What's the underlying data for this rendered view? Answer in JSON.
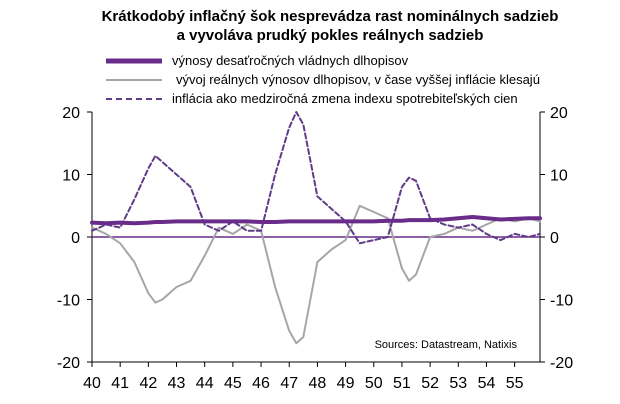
{
  "title_line1": "Krátkodobý inflačný šok nesprevádza rast nominálnych sadzieb",
  "title_line2": "a vyvoláva prudký pokles reálnych sadzieb",
  "source": "Sources: Datastream, Natixis",
  "colors": {
    "nominal": "#6a2c8a",
    "real": "#a6a6a6",
    "inflation": "#5f3b8a",
    "zero": "#6a2c8a"
  },
  "chart_data": {
    "type": "line",
    "x": [
      40,
      40.5,
      41,
      41.5,
      42,
      42.25,
      42.5,
      43,
      43.5,
      44,
      44.5,
      45,
      45.5,
      46,
      46.5,
      47,
      47.25,
      47.5,
      48,
      48.5,
      49,
      49.5,
      50,
      50.5,
      51,
      51.25,
      51.5,
      52,
      52.5,
      53,
      53.5,
      54,
      54.5,
      55,
      55.5,
      55.9
    ],
    "x_tick_labels": [
      "40",
      "41",
      "42",
      "43",
      "44",
      "45",
      "46",
      "47",
      "48",
      "49",
      "50",
      "51",
      "52",
      "53",
      "54",
      "55"
    ],
    "x_ticks": [
      40,
      41,
      42,
      43,
      44,
      45,
      46,
      47,
      48,
      49,
      50,
      51,
      52,
      53,
      54,
      55
    ],
    "ylim": [
      -20,
      20
    ],
    "y_ticks": [
      20,
      10,
      0,
      -10,
      -20
    ],
    "y_tick_labels": [
      "20",
      "10",
      "0",
      "-10",
      "-20"
    ],
    "y2_ticks": [
      20,
      10,
      0,
      -10,
      -20
    ],
    "y2_tick_labels": [
      "20",
      "10",
      "0",
      "-10",
      "-20"
    ],
    "series": [
      {
        "name": "výnosy desaťročných vládnych dlhopisov",
        "style": "solid-thick",
        "values": [
          2.3,
          2.2,
          2.3,
          2.2,
          2.3,
          2.4,
          2.4,
          2.5,
          2.5,
          2.5,
          2.5,
          2.5,
          2.5,
          2.4,
          2.4,
          2.5,
          2.5,
          2.5,
          2.5,
          2.5,
          2.5,
          2.5,
          2.5,
          2.6,
          2.6,
          2.7,
          2.7,
          2.7,
          2.8,
          3.0,
          3.2,
          3.0,
          2.8,
          2.9,
          3.0,
          3.0
        ]
      },
      {
        "name": "vývoj reálnych výnosov dlhopisov, v čase vyššej inflácie klesajú",
        "style": "solid-thin",
        "values": [
          1.5,
          0.5,
          -1.0,
          -4.0,
          -9.0,
          -10.5,
          -10.0,
          -8.0,
          -7.0,
          -3.0,
          1.5,
          0.5,
          2.0,
          1.0,
          -8.0,
          -15.0,
          -17.0,
          -16.0,
          -4.0,
          -2.0,
          -0.5,
          5.0,
          4.0,
          3.0,
          -5.0,
          -7.0,
          -6.0,
          0.0,
          0.5,
          1.5,
          1.0,
          2.0,
          3.0,
          2.5,
          3.0,
          2.5
        ]
      },
      {
        "name": "inflácia ako medziročná zmena indexu spotrebiteľských cien",
        "style": "dashed",
        "values": [
          1.0,
          2.0,
          1.5,
          6.0,
          11.0,
          13.0,
          12.0,
          10.0,
          8.0,
          2.0,
          1.0,
          2.5,
          1.0,
          1.0,
          10.0,
          17.5,
          20.0,
          18.0,
          6.5,
          4.5,
          2.5,
          -1.0,
          -0.5,
          0.0,
          8.0,
          9.5,
          9.0,
          3.0,
          2.0,
          1.5,
          2.0,
          0.5,
          -0.5,
          0.5,
          0.0,
          0.5
        ]
      }
    ]
  }
}
